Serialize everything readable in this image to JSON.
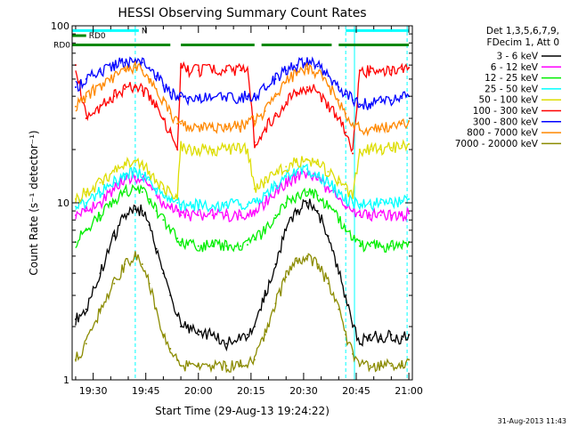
{
  "chart_data": {
    "type": "line",
    "title": "HESSI Observing Summary Count Rates",
    "xlabel": "Start Time (29-Aug-13 19:24:22)",
    "ylabel": "Count Rate (s⁻¹ detector⁻¹)",
    "yscale": "log",
    "ylim": [
      1,
      100
    ],
    "xlim_min": [
      0,
      97
    ],
    "x_ticks": [
      {
        "min": 6,
        "label": "19:30"
      },
      {
        "min": 21,
        "label": "19:45"
      },
      {
        "min": 36,
        "label": "20:00"
      },
      {
        "min": 51,
        "label": "20:15"
      },
      {
        "min": 66,
        "label": "20:30"
      },
      {
        "min": 81,
        "label": "20:45"
      },
      {
        "min": 96,
        "label": "21:00"
      }
    ],
    "y_ticks": [
      {
        "value": 1,
        "label": "1"
      },
      {
        "value": 10,
        "label": "10"
      },
      {
        "value": 100,
        "label": "100"
      }
    ],
    "legend_header": [
      "Det 1,3,5,6,7,9,",
      "FDecim 1, Att 0"
    ],
    "legend_placement": "right",
    "series": [
      {
        "name": "3 - 6 keV",
        "color": "#000000",
        "x": [
          1,
          4,
          8,
          12,
          15,
          18,
          20,
          22,
          24,
          26,
          28,
          30,
          31,
          33,
          36,
          40,
          44,
          48,
          50,
          52,
          55,
          58,
          61,
          64,
          67,
          70,
          73,
          76,
          78,
          80,
          82,
          85,
          88,
          91,
          94,
          96
        ],
        "y": [
          2.2,
          2.5,
          4,
          6.5,
          8.5,
          9.2,
          9,
          7.5,
          5.5,
          4,
          3,
          2.3,
          2,
          2,
          1.8,
          1.8,
          1.6,
          1.7,
          1.8,
          2,
          3,
          4.5,
          7,
          9,
          10,
          9,
          6.5,
          4,
          3,
          2,
          1.6,
          1.8,
          1.7,
          1.8,
          1.7,
          1.8
        ]
      },
      {
        "name": "6 - 12 keV",
        "color": "#ff00ff",
        "x": [
          1,
          4,
          8,
          12,
          15,
          18,
          20,
          22,
          24,
          26,
          28,
          30,
          31,
          33,
          36,
          40,
          44,
          48,
          50,
          52,
          55,
          58,
          61,
          64,
          67,
          70,
          73,
          76,
          78,
          80,
          82,
          85,
          88,
          91,
          94,
          96
        ],
        "y": [
          8.5,
          9,
          10,
          12,
          13.5,
          14,
          13.5,
          12.5,
          11,
          10,
          9.5,
          9,
          8.5,
          8.5,
          8.5,
          8.5,
          8.5,
          8.5,
          8.5,
          9,
          10,
          11.5,
          13,
          14,
          14.5,
          13.5,
          12,
          10.5,
          9.5,
          9,
          8.5,
          8.5,
          8.5,
          8.5,
          8.5,
          8.7
        ]
      },
      {
        "name": "12 - 25 keV",
        "color": "#00ee00",
        "x": [
          1,
          4,
          8,
          12,
          15,
          18,
          20,
          22,
          24,
          26,
          28,
          30,
          31,
          33,
          36,
          40,
          44,
          48,
          50,
          52,
          55,
          58,
          61,
          64,
          67,
          70,
          73,
          76,
          78,
          80,
          82,
          85,
          88,
          91,
          94,
          96
        ],
        "y": [
          6,
          7,
          8.5,
          10,
          11.5,
          12,
          11.5,
          10.5,
          9,
          8,
          7,
          6.3,
          6,
          5.8,
          5.7,
          5.7,
          5.7,
          5.7,
          5.8,
          6.2,
          7,
          8.5,
          10,
          11,
          11.5,
          11,
          9.5,
          8,
          7,
          6.2,
          5.7,
          5.7,
          5.7,
          5.7,
          5.8,
          6
        ]
      },
      {
        "name": "25 - 50 keV",
        "color": "#00ffff",
        "x": [
          1,
          4,
          8,
          12,
          15,
          18,
          20,
          22,
          24,
          26,
          28,
          30,
          31,
          33,
          36,
          40,
          44,
          48,
          50,
          52,
          55,
          58,
          61,
          64,
          67,
          70,
          73,
          76,
          78,
          80,
          82,
          85,
          88,
          91,
          94,
          96
        ],
        "y": [
          9.5,
          10,
          11.5,
          13,
          14.5,
          15,
          14.5,
          13.5,
          12,
          11,
          10.5,
          10,
          9.8,
          9.7,
          9.7,
          9.7,
          9.7,
          9.8,
          9.8,
          10.2,
          11,
          12.5,
          14,
          15,
          15.5,
          14.5,
          13,
          11.5,
          10.5,
          10,
          9.8,
          9.8,
          10,
          10,
          10.3,
          10.5
        ]
      },
      {
        "name": "50 - 100 keV",
        "color": "#dddd00",
        "x": [
          1,
          4,
          8,
          12,
          15,
          18,
          20,
          22,
          24,
          26,
          28,
          30,
          31,
          33,
          36,
          40,
          44,
          48,
          50,
          52,
          55,
          58,
          61,
          64,
          67,
          70,
          73,
          76,
          78,
          80,
          82,
          85,
          88,
          91,
          94,
          96
        ],
        "y": [
          10.5,
          11.5,
          13,
          15,
          16.5,
          17,
          16.5,
          15,
          13.5,
          12,
          11.5,
          11,
          21,
          20,
          20,
          20,
          20,
          20,
          20,
          12,
          13,
          14.5,
          16,
          17,
          17.5,
          16.5,
          15,
          13,
          12,
          11,
          20,
          20,
          20,
          20.5,
          21,
          21.5
        ]
      },
      {
        "name": "100 - 300 keV",
        "color": "#ff0000",
        "x": [
          1,
          4,
          8,
          12,
          15,
          18,
          20,
          22,
          24,
          26,
          28,
          30,
          31,
          33,
          36,
          40,
          44,
          48,
          50,
          52,
          55,
          58,
          61,
          64,
          67,
          70,
          73,
          76,
          78,
          80,
          82,
          85,
          88,
          91,
          94,
          96
        ],
        "y": [
          60,
          30,
          35,
          40,
          44,
          45,
          43,
          40,
          35,
          30,
          25,
          20,
          58,
          56,
          56,
          56,
          56,
          56,
          57,
          22,
          26,
          31,
          37,
          42,
          45,
          42,
          36,
          30,
          25,
          19,
          56,
          55,
          55,
          56,
          57,
          58
        ]
      },
      {
        "name": "300 - 800 keV",
        "color": "#0000ff",
        "x": [
          1,
          4,
          8,
          12,
          15,
          18,
          20,
          22,
          24,
          26,
          28,
          30,
          31,
          33,
          36,
          40,
          44,
          48,
          50,
          52,
          55,
          58,
          61,
          64,
          67,
          70,
          73,
          76,
          78,
          80,
          82,
          85,
          88,
          91,
          94,
          96
        ],
        "y": [
          45,
          50,
          55,
          60,
          62,
          63,
          62,
          58,
          52,
          46,
          42,
          39,
          40,
          39,
          39,
          39,
          39,
          39,
          40,
          40,
          44,
          50,
          56,
          60,
          62,
          59,
          52,
          45,
          41,
          38,
          36,
          36,
          37,
          38,
          39,
          40
        ]
      },
      {
        "name": "800 - 7000 keV",
        "color": "#ff8800",
        "x": [
          1,
          4,
          8,
          12,
          15,
          18,
          20,
          22,
          24,
          26,
          28,
          30,
          31,
          33,
          36,
          40,
          44,
          48,
          50,
          52,
          55,
          58,
          61,
          64,
          67,
          70,
          73,
          76,
          78,
          80,
          82,
          85,
          88,
          91,
          94,
          96
        ],
        "y": [
          35,
          40,
          46,
          52,
          56,
          58,
          56,
          50,
          44,
          38,
          32,
          28,
          28,
          27,
          27,
          27,
          27,
          27,
          28,
          29,
          33,
          40,
          48,
          54,
          57,
          54,
          46,
          38,
          32,
          28,
          26,
          26,
          26,
          27,
          28,
          29
        ]
      },
      {
        "name": "7000 - 20000 keV",
        "color": "#8b8b00",
        "x": [
          1,
          4,
          8,
          12,
          15,
          18,
          20,
          22,
          24,
          26,
          28,
          30,
          31,
          33,
          36,
          40,
          44,
          48,
          50,
          52,
          55,
          58,
          61,
          64,
          67,
          70,
          73,
          76,
          78,
          80,
          82,
          85,
          88,
          91,
          94,
          96
        ],
        "y": [
          1.3,
          1.6,
          2.5,
          3.5,
          4.5,
          5,
          4.5,
          3.5,
          2.5,
          1.8,
          1.5,
          1.3,
          1.2,
          1.2,
          1.2,
          1.2,
          1.2,
          1.2,
          1.2,
          1.3,
          1.8,
          2.7,
          3.8,
          4.7,
          5,
          4.5,
          3.5,
          2.5,
          1.8,
          1.4,
          1.2,
          1.2,
          1.2,
          1.2,
          1.2,
          1.3
        ]
      }
    ],
    "annotations": {
      "verticals": [
        {
          "min": 0,
          "color": "#00ffff",
          "style": "solid"
        },
        {
          "min": 18,
          "color": "#00ffff",
          "style": "dashed"
        },
        {
          "min": 78,
          "color": "#00ffff",
          "style": "dashed"
        },
        {
          "min": 80.5,
          "color": "#00ffff",
          "style": "solid"
        },
        {
          "min": 95.5,
          "color": "#00ffff",
          "style": "dashed"
        }
      ],
      "bars": [
        {
          "label": "N",
          "color": "#00ffff",
          "y": 94,
          "segments": [
            [
              0,
              19
            ],
            [
              78,
              96
            ]
          ]
        },
        {
          "label": "RD0",
          "color": "#008800",
          "y": 88,
          "segments": [
            [
              0,
              4
            ]
          ]
        },
        {
          "label": "RD0",
          "color": "#008800",
          "y": 78,
          "segments": [
            [
              0,
              28
            ],
            [
              31,
              52
            ],
            [
              54,
              74
            ],
            [
              76,
              96
            ]
          ]
        }
      ]
    }
  },
  "footer_timestamp": "31-Aug-2013 11:43"
}
